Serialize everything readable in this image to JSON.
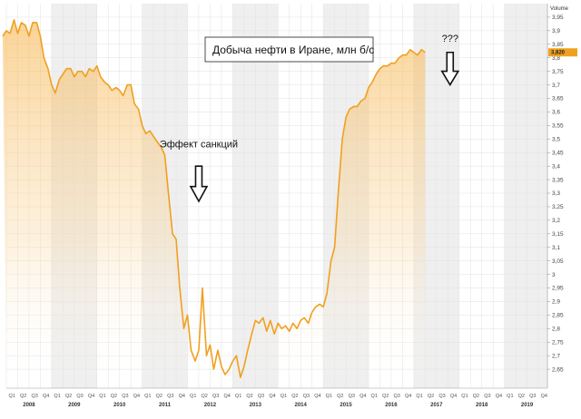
{
  "chart_data": {
    "type": "area",
    "title": "Добыча нефти в Иране, млн б/с",
    "ylabel": "Volume",
    "ylim": [
      2.58,
      4.0
    ],
    "yticks": [
      2.65,
      2.7,
      2.75,
      2.8,
      2.85,
      2.9,
      2.95,
      3,
      3.05,
      3.1,
      3.15,
      3.2,
      3.25,
      3.3,
      3.35,
      3.4,
      3.45,
      3.5,
      3.55,
      3.6,
      3.65,
      3.7,
      3.75,
      3.8,
      3.85,
      3.9,
      3.95
    ],
    "ytick_labels": [
      "2,65",
      "2,7",
      "2,75",
      "2,8",
      "2,85",
      "2,9",
      "2,95",
      "3",
      "3,05",
      "3,1",
      "3,15",
      "3,2",
      "3,25",
      "3,3",
      "3,35",
      "3,4",
      "3,45",
      "3,5",
      "3,55",
      "3,6",
      "3,65",
      "3,7",
      "3,75",
      "3,8",
      "3,85",
      "3,9",
      "3,95"
    ],
    "x_start": 2008.0,
    "x_end": 2019.95,
    "years": [
      "2008",
      "2009",
      "2010",
      "2011",
      "2012",
      "2013",
      "2014",
      "2015",
      "2016",
      "2017",
      "2018",
      "2019"
    ],
    "quarter_labels": [
      "Q1",
      "Q2",
      "Q3",
      "Q4"
    ],
    "grid": true,
    "last_value_label": "3,820",
    "series": [
      {
        "color": "#f0a020",
        "points": [
          [
            2007.92,
            3.88
          ],
          [
            2008.0,
            3.9
          ],
          [
            2008.08,
            3.89
          ],
          [
            2008.17,
            3.94
          ],
          [
            2008.25,
            3.89
          ],
          [
            2008.33,
            3.93
          ],
          [
            2008.42,
            3.92
          ],
          [
            2008.5,
            3.88
          ],
          [
            2008.58,
            3.93
          ],
          [
            2008.67,
            3.93
          ],
          [
            2008.75,
            3.88
          ],
          [
            2008.83,
            3.8
          ],
          [
            2008.92,
            3.76
          ],
          [
            2009.0,
            3.7
          ],
          [
            2009.08,
            3.67
          ],
          [
            2009.17,
            3.72
          ],
          [
            2009.25,
            3.74
          ],
          [
            2009.33,
            3.76
          ],
          [
            2009.42,
            3.76
          ],
          [
            2009.5,
            3.73
          ],
          [
            2009.58,
            3.75
          ],
          [
            2009.67,
            3.75
          ],
          [
            2009.75,
            3.73
          ],
          [
            2009.83,
            3.76
          ],
          [
            2009.92,
            3.75
          ],
          [
            2010.0,
            3.77
          ],
          [
            2010.08,
            3.73
          ],
          [
            2010.17,
            3.71
          ],
          [
            2010.25,
            3.7
          ],
          [
            2010.33,
            3.68
          ],
          [
            2010.42,
            3.69
          ],
          [
            2010.5,
            3.68
          ],
          [
            2010.58,
            3.66
          ],
          [
            2010.67,
            3.7
          ],
          [
            2010.75,
            3.7
          ],
          [
            2010.83,
            3.63
          ],
          [
            2010.92,
            3.61
          ],
          [
            2011.0,
            3.55
          ],
          [
            2011.08,
            3.52
          ],
          [
            2011.17,
            3.53
          ],
          [
            2011.25,
            3.51
          ],
          [
            2011.33,
            3.49
          ],
          [
            2011.42,
            3.47
          ],
          [
            2011.5,
            3.44
          ],
          [
            2011.58,
            3.3
          ],
          [
            2011.67,
            3.15
          ],
          [
            2011.75,
            3.13
          ],
          [
            2011.83,
            2.95
          ],
          [
            2011.92,
            2.8
          ],
          [
            2012.0,
            2.85
          ],
          [
            2012.08,
            2.72
          ],
          [
            2012.17,
            2.68
          ],
          [
            2012.25,
            2.72
          ],
          [
            2012.33,
            2.95
          ],
          [
            2012.42,
            2.7
          ],
          [
            2012.5,
            2.74
          ],
          [
            2012.58,
            2.65
          ],
          [
            2012.67,
            2.72
          ],
          [
            2012.75,
            2.66
          ],
          [
            2012.83,
            2.63
          ],
          [
            2012.92,
            2.65
          ],
          [
            2013.0,
            2.68
          ],
          [
            2013.08,
            2.7
          ],
          [
            2013.17,
            2.62
          ],
          [
            2013.25,
            2.66
          ],
          [
            2013.33,
            2.72
          ],
          [
            2013.42,
            2.78
          ],
          [
            2013.5,
            2.83
          ],
          [
            2013.58,
            2.82
          ],
          [
            2013.67,
            2.84
          ],
          [
            2013.75,
            2.79
          ],
          [
            2013.83,
            2.83
          ],
          [
            2013.92,
            2.78
          ],
          [
            2014.0,
            2.82
          ],
          [
            2014.08,
            2.8
          ],
          [
            2014.17,
            2.81
          ],
          [
            2014.25,
            2.79
          ],
          [
            2014.33,
            2.82
          ],
          [
            2014.42,
            2.8
          ],
          [
            2014.5,
            2.83
          ],
          [
            2014.58,
            2.84
          ],
          [
            2014.67,
            2.82
          ],
          [
            2014.75,
            2.86
          ],
          [
            2014.83,
            2.88
          ],
          [
            2014.92,
            2.89
          ],
          [
            2015.0,
            2.88
          ],
          [
            2015.08,
            2.93
          ],
          [
            2015.17,
            3.05
          ],
          [
            2015.25,
            3.1
          ],
          [
            2015.33,
            3.3
          ],
          [
            2015.42,
            3.5
          ],
          [
            2015.5,
            3.58
          ],
          [
            2015.58,
            3.61
          ],
          [
            2015.67,
            3.62
          ],
          [
            2015.75,
            3.62
          ],
          [
            2015.83,
            3.64
          ],
          [
            2015.92,
            3.65
          ],
          [
            2016.0,
            3.69
          ],
          [
            2016.08,
            3.71
          ],
          [
            2016.17,
            3.74
          ],
          [
            2016.25,
            3.76
          ],
          [
            2016.33,
            3.77
          ],
          [
            2016.42,
            3.77
          ],
          [
            2016.5,
            3.78
          ],
          [
            2016.58,
            3.78
          ],
          [
            2016.67,
            3.8
          ],
          [
            2016.75,
            3.81
          ],
          [
            2016.83,
            3.81
          ],
          [
            2016.92,
            3.83
          ],
          [
            2017.0,
            3.82
          ],
          [
            2017.08,
            3.81
          ],
          [
            2017.17,
            3.83
          ],
          [
            2017.25,
            3.82
          ]
        ]
      }
    ],
    "annotations": [
      {
        "text": "Эффект санкций",
        "x": 2012.25,
        "y": 3.47,
        "arrow_y": [
          3.4,
          3.27
        ]
      },
      {
        "text": "???",
        "x": 2017.8,
        "y": 3.86,
        "arrow_y": [
          3.82,
          3.7
        ]
      }
    ]
  }
}
